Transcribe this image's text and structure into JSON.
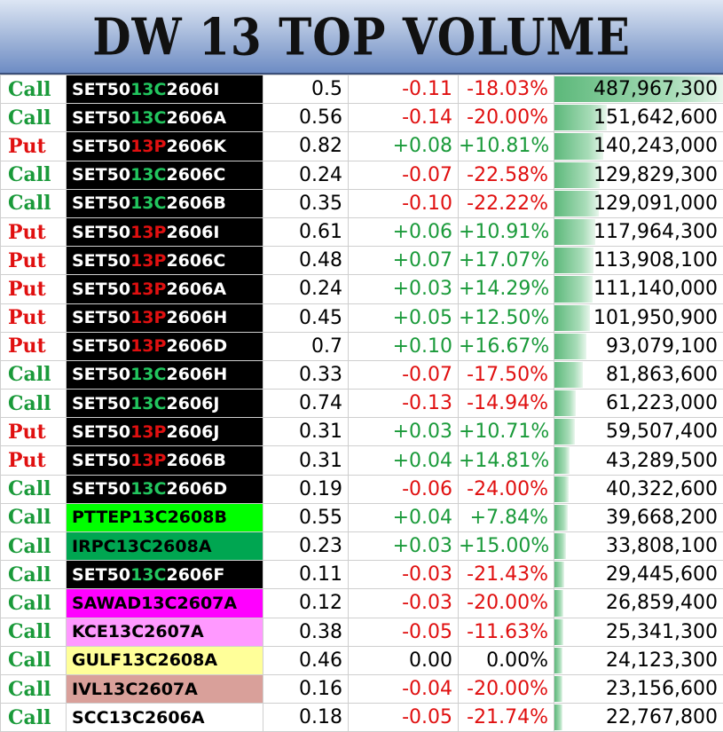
{
  "title": "DW 13 TOP VOLUME",
  "colors": {
    "call": "#1a9a3a",
    "put": "#e01010",
    "set50_call_highlight": "#22c55e",
    "set50_put_highlight": "#e01010",
    "name_bg_default": "#000000",
    "pttep_bg": "#00ff00",
    "irpc_bg": "#00a651",
    "sawad_bg": "#ff00ff",
    "kce_bg": "#ff99ff",
    "gulf_bg": "#ffff99",
    "ivl_bg": "#d9a09a",
    "scc_bg": "#ffffff",
    "volume_bar": "#5cb87a"
  },
  "max_volume": 487967300,
  "rows": [
    {
      "type": "Call",
      "name_pre": "SET50",
      "name_mid": "13C",
      "name_post": "2606I",
      "last": "0.5",
      "chg": "-0.11",
      "pct": "-18.03%",
      "volume": "487,967,300",
      "vol_value": 487967300,
      "bg": "#000000",
      "fg": "#ffffff"
    },
    {
      "type": "Call",
      "name_pre": "SET50",
      "name_mid": "13C",
      "name_post": "2606A",
      "last": "0.56",
      "chg": "-0.14",
      "pct": "-20.00%",
      "volume": "151,642,600",
      "vol_value": 151642600,
      "bg": "#000000",
      "fg": "#ffffff"
    },
    {
      "type": "Put",
      "name_pre": "SET50",
      "name_mid": "13P",
      "name_post": "2606K",
      "last": "0.82",
      "chg": "+0.08",
      "pct": "+10.81%",
      "volume": "140,243,000",
      "vol_value": 140243000,
      "bg": "#000000",
      "fg": "#ffffff"
    },
    {
      "type": "Call",
      "name_pre": "SET50",
      "name_mid": "13C",
      "name_post": "2606C",
      "last": "0.24",
      "chg": "-0.07",
      "pct": "-22.58%",
      "volume": "129,829,300",
      "vol_value": 129829300,
      "bg": "#000000",
      "fg": "#ffffff"
    },
    {
      "type": "Call",
      "name_pre": "SET50",
      "name_mid": "13C",
      "name_post": "2606B",
      "last": "0.35",
      "chg": "-0.10",
      "pct": "-22.22%",
      "volume": "129,091,000",
      "vol_value": 129091000,
      "bg": "#000000",
      "fg": "#ffffff"
    },
    {
      "type": "Put",
      "name_pre": "SET50",
      "name_mid": "13P",
      "name_post": "2606I",
      "last": "0.61",
      "chg": "+0.06",
      "pct": "+10.91%",
      "volume": "117,964,300",
      "vol_value": 117964300,
      "bg": "#000000",
      "fg": "#ffffff"
    },
    {
      "type": "Put",
      "name_pre": "SET50",
      "name_mid": "13P",
      "name_post": "2606C",
      "last": "0.48",
      "chg": "+0.07",
      "pct": "+17.07%",
      "volume": "113,908,100",
      "vol_value": 113908100,
      "bg": "#000000",
      "fg": "#ffffff"
    },
    {
      "type": "Put",
      "name_pre": "SET50",
      "name_mid": "13P",
      "name_post": "2606A",
      "last": "0.24",
      "chg": "+0.03",
      "pct": "+14.29%",
      "volume": "111,140,000",
      "vol_value": 111140000,
      "bg": "#000000",
      "fg": "#ffffff"
    },
    {
      "type": "Put",
      "name_pre": "SET50",
      "name_mid": "13P",
      "name_post": "2606H",
      "last": "0.45",
      "chg": "+0.05",
      "pct": "+12.50%",
      "volume": "101,950,900",
      "vol_value": 101950900,
      "bg": "#000000",
      "fg": "#ffffff"
    },
    {
      "type": "Put",
      "name_pre": "SET50",
      "name_mid": "13P",
      "name_post": "2606D",
      "last": "0.7",
      "chg": "+0.10",
      "pct": "+16.67%",
      "volume": "93,079,100",
      "vol_value": 93079100,
      "bg": "#000000",
      "fg": "#ffffff"
    },
    {
      "type": "Call",
      "name_pre": "SET50",
      "name_mid": "13C",
      "name_post": "2606H",
      "last": "0.33",
      "chg": "-0.07",
      "pct": "-17.50%",
      "volume": "81,863,600",
      "vol_value": 81863600,
      "bg": "#000000",
      "fg": "#ffffff"
    },
    {
      "type": "Call",
      "name_pre": "SET50",
      "name_mid": "13C",
      "name_post": "2606J",
      "last": "0.74",
      "chg": "-0.13",
      "pct": "-14.94%",
      "volume": "61,223,000",
      "vol_value": 61223000,
      "bg": "#000000",
      "fg": "#ffffff"
    },
    {
      "type": "Put",
      "name_pre": "SET50",
      "name_mid": "13P",
      "name_post": "2606J",
      "last": "0.31",
      "chg": "+0.03",
      "pct": "+10.71%",
      "volume": "59,507,400",
      "vol_value": 59507400,
      "bg": "#000000",
      "fg": "#ffffff"
    },
    {
      "type": "Put",
      "name_pre": "SET50",
      "name_mid": "13P",
      "name_post": "2606B",
      "last": "0.31",
      "chg": "+0.04",
      "pct": "+14.81%",
      "volume": "43,289,500",
      "vol_value": 43289500,
      "bg": "#000000",
      "fg": "#ffffff"
    },
    {
      "type": "Call",
      "name_pre": "SET50",
      "name_mid": "13C",
      "name_post": "2606D",
      "last": "0.19",
      "chg": "-0.06",
      "pct": "-24.00%",
      "volume": "40,322,600",
      "vol_value": 40322600,
      "bg": "#000000",
      "fg": "#ffffff"
    },
    {
      "type": "Call",
      "name_pre": "PTTEP13C2608B",
      "name_mid": "",
      "name_post": "",
      "last": "0.55",
      "chg": "+0.04",
      "pct": "+7.84%",
      "volume": "39,668,200",
      "vol_value": 39668200,
      "bg": "#00ff00",
      "fg": "#000000"
    },
    {
      "type": "Call",
      "name_pre": "IRPC13C2608A",
      "name_mid": "",
      "name_post": "",
      "last": "0.23",
      "chg": "+0.03",
      "pct": "+15.00%",
      "volume": "33,808,100",
      "vol_value": 33808100,
      "bg": "#00a651",
      "fg": "#000000"
    },
    {
      "type": "Call",
      "name_pre": "SET50",
      "name_mid": "13C",
      "name_post": "2606F",
      "last": "0.11",
      "chg": "-0.03",
      "pct": "-21.43%",
      "volume": "29,445,600",
      "vol_value": 29445600,
      "bg": "#000000",
      "fg": "#ffffff"
    },
    {
      "type": "Call",
      "name_pre": "SAWAD13C2607A",
      "name_mid": "",
      "name_post": "",
      "last": "0.12",
      "chg": "-0.03",
      "pct": "-20.00%",
      "volume": "26,859,400",
      "vol_value": 26859400,
      "bg": "#ff00ff",
      "fg": "#000000"
    },
    {
      "type": "Call",
      "name_pre": "KCE13C2607A",
      "name_mid": "",
      "name_post": "",
      "last": "0.38",
      "chg": "-0.05",
      "pct": "-11.63%",
      "volume": "25,341,300",
      "vol_value": 25341300,
      "bg": "#ff99ff",
      "fg": "#000000"
    },
    {
      "type": "Call",
      "name_pre": "GULF13C2608A",
      "name_mid": "",
      "name_post": "",
      "last": "0.46",
      "chg": "0.00",
      "pct": "0.00%",
      "volume": "24,123,300",
      "vol_value": 24123300,
      "bg": "#ffff99",
      "fg": "#000000"
    },
    {
      "type": "Call",
      "name_pre": "IVL13C2607A",
      "name_mid": "",
      "name_post": "",
      "last": "0.16",
      "chg": "-0.04",
      "pct": "-20.00%",
      "volume": "23,156,600",
      "vol_value": 23156600,
      "bg": "#d9a09a",
      "fg": "#000000"
    },
    {
      "type": "Call",
      "name_pre": "SCC13C2606A",
      "name_mid": "",
      "name_post": "",
      "last": "0.18",
      "chg": "-0.05",
      "pct": "-21.74%",
      "volume": "22,767,800",
      "vol_value": 22767800,
      "bg": "#ffffff",
      "fg": "#000000"
    }
  ]
}
